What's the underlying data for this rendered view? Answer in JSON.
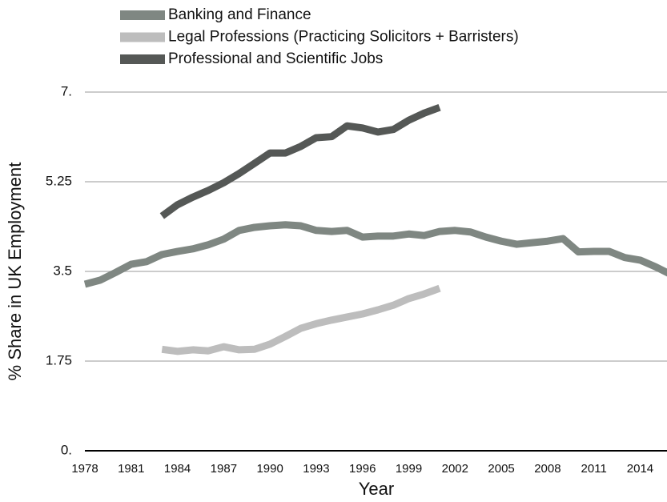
{
  "chart_data": {
    "type": "line",
    "xlabel": "Year",
    "ylabel": "% Share in UK Employment",
    "x": [
      1978,
      1979,
      1980,
      1981,
      1982,
      1983,
      1984,
      1985,
      1986,
      1987,
      1988,
      1989,
      1990,
      1991,
      1992,
      1993,
      1994,
      1995,
      1996,
      1997,
      1998,
      1999,
      2000,
      2001,
      2002,
      2003,
      2004,
      2005,
      2006,
      2007,
      2008,
      2009,
      2010,
      2011,
      2012,
      2013,
      2014,
      2015,
      2016
    ],
    "series": [
      {
        "name": "Banking and Finance",
        "color": "#7f8782",
        "values": [
          3.25,
          3.33,
          3.48,
          3.64,
          3.69,
          3.83,
          3.89,
          3.94,
          4.02,
          4.13,
          4.3,
          4.36,
          4.39,
          4.41,
          4.39,
          4.3,
          4.28,
          4.3,
          4.17,
          4.19,
          4.19,
          4.23,
          4.2,
          4.28,
          4.3,
          4.27,
          4.17,
          4.09,
          4.03,
          4.06,
          4.09,
          4.14,
          3.88,
          3.89,
          3.89,
          3.77,
          3.72,
          3.59,
          3.44
        ]
      },
      {
        "name": "Legal Professions (Practicing Solicitors + Barristers)",
        "color": "#bdbdbd",
        "values": [
          null,
          null,
          null,
          null,
          null,
          1.98,
          1.94,
          1.97,
          1.95,
          2.03,
          1.97,
          1.98,
          2.08,
          2.23,
          2.39,
          2.48,
          2.55,
          2.61,
          2.67,
          2.75,
          2.84,
          2.97,
          3.06,
          3.17,
          null,
          null,
          null,
          null,
          null,
          null,
          null,
          null,
          null,
          null,
          null,
          null,
          null,
          null,
          null
        ]
      },
      {
        "name": "Professional and Scientific Jobs",
        "color": "#555856",
        "values": [
          null,
          null,
          null,
          null,
          null,
          4.58,
          4.8,
          4.95,
          5.08,
          5.23,
          5.41,
          5.61,
          5.81,
          5.81,
          5.94,
          6.11,
          6.13,
          6.34,
          6.3,
          6.22,
          6.27,
          6.45,
          6.59,
          6.7,
          null,
          null,
          null,
          null,
          null,
          null,
          null,
          null,
          null,
          null,
          null,
          null,
          null,
          null,
          null
        ]
      }
    ],
    "xlim": [
      1978,
      2016
    ],
    "xticks": [
      1978,
      1981,
      1984,
      1987,
      1990,
      1993,
      1996,
      1999,
      2002,
      2005,
      2008,
      2011,
      2014
    ],
    "ylim": [
      0,
      7
    ],
    "yticks": [
      {
        "value": 0,
        "label": "0."
      },
      1.75,
      3.5,
      5.25,
      {
        "value": 7,
        "label": "7."
      }
    ],
    "grid": true,
    "legend": "top"
  }
}
